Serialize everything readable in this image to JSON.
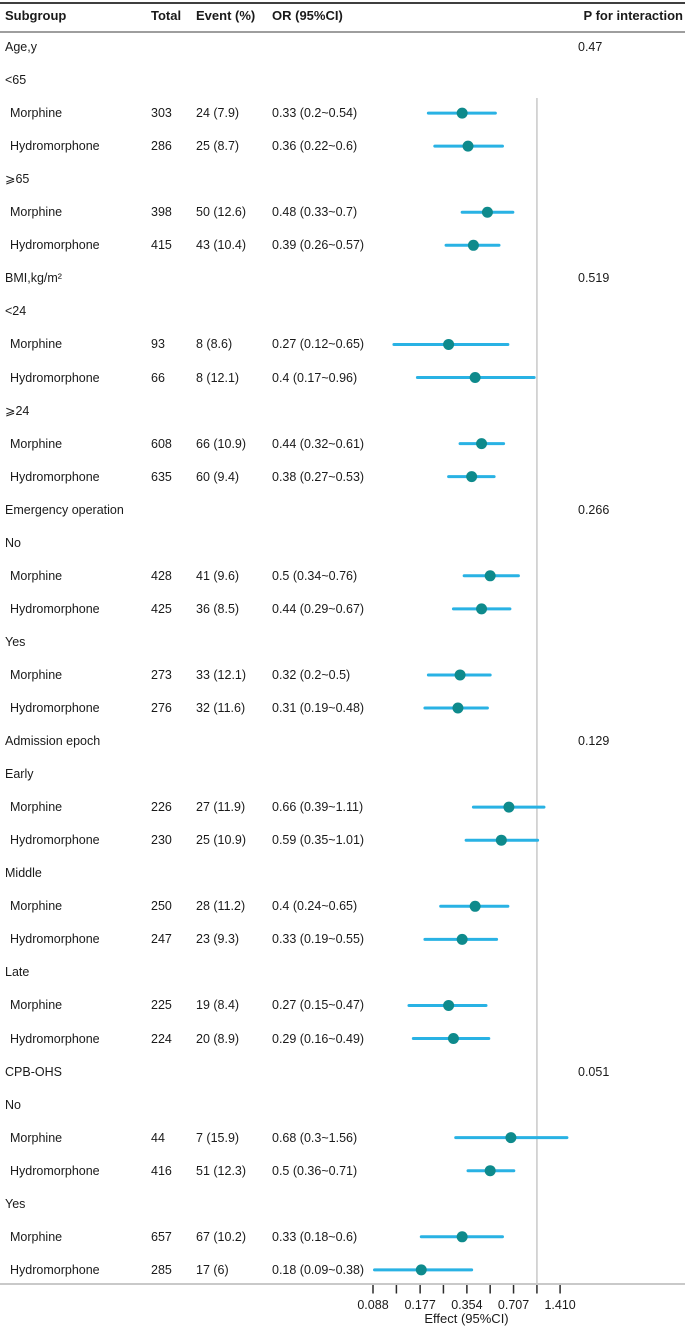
{
  "header": {
    "subgroup": "Subgroup",
    "total": "Total",
    "event": "Event (%)",
    "or": "OR (95%CI)",
    "p_interaction": "P for interaction"
  },
  "axis": {
    "label": "Effect (95%CI)",
    "scale": "log2",
    "ref_line": 1.0,
    "range": [
      0.088,
      1.41
    ],
    "ticks": [
      {
        "value": 0.088,
        "label": "0.088"
      },
      {
        "value": 0.1245
      },
      {
        "value": 0.177,
        "label": "0.177"
      },
      {
        "value": 0.25
      },
      {
        "value": 0.354,
        "label": "0.354"
      },
      {
        "value": 0.5
      },
      {
        "value": 0.707,
        "label": "0.707"
      },
      {
        "value": 1.0
      },
      {
        "value": 1.41,
        "label": "1.410"
      }
    ]
  },
  "colors": {
    "ci_line": "#29b2e4",
    "marker": "#0e8a8c",
    "ref_line": "#c9c9c9",
    "axis": "#2b2b2b",
    "text": "#1a1a1a"
  },
  "chart_data": {
    "type": "forest",
    "groups": [
      {
        "label": "Age,y",
        "p_interaction": "0.47",
        "subgroups": [
          {
            "label": "<65",
            "arms": [
              {
                "label": "Morphine",
                "total": "303",
                "event": "24 (7.9)",
                "or_text": "0.33 (0.2~0.54)",
                "or": 0.33,
                "lo": 0.2,
                "hi": 0.54
              },
              {
                "label": "Hydromorphone",
                "total": "286",
                "event": "25 (8.7)",
                "or_text": "0.36 (0.22~0.6)",
                "or": 0.36,
                "lo": 0.22,
                "hi": 0.6
              }
            ]
          },
          {
            "label": "⩾65",
            "arms": [
              {
                "label": "Morphine",
                "total": "398",
                "event": "50 (12.6)",
                "or_text": "0.48 (0.33~0.7)",
                "or": 0.48,
                "lo": 0.33,
                "hi": 0.7
              },
              {
                "label": "Hydromorphone",
                "total": "415",
                "event": "43 (10.4)",
                "or_text": "0.39 (0.26~0.57)",
                "or": 0.39,
                "lo": 0.26,
                "hi": 0.57
              }
            ]
          }
        ]
      },
      {
        "label": "BMI,kg/m²",
        "p_interaction": "0.519",
        "subgroups": [
          {
            "label": "<24",
            "arms": [
              {
                "label": "Morphine",
                "total": "93",
                "event": "8 (8.6)",
                "or_text": "0.27 (0.12~0.65)",
                "or": 0.27,
                "lo": 0.12,
                "hi": 0.65
              },
              {
                "label": "Hydromorphone",
                "total": "66",
                "event": "8 (12.1)",
                "or_text": "0.4 (0.17~0.96)",
                "or": 0.4,
                "lo": 0.17,
                "hi": 0.96
              }
            ]
          },
          {
            "label": "⩾24",
            "arms": [
              {
                "label": "Morphine",
                "total": "608",
                "event": "66 (10.9)",
                "or_text": "0.44 (0.32~0.61)",
                "or": 0.44,
                "lo": 0.32,
                "hi": 0.61
              },
              {
                "label": "Hydromorphone",
                "total": "635",
                "event": "60 (9.4)",
                "or_text": "0.38 (0.27~0.53)",
                "or": 0.38,
                "lo": 0.27,
                "hi": 0.53
              }
            ]
          }
        ]
      },
      {
        "label": "Emergency operation",
        "p_interaction": "0.266",
        "subgroups": [
          {
            "label": "No",
            "arms": [
              {
                "label": "Morphine",
                "total": "428",
                "event": "41 (9.6)",
                "or_text": "0.5 (0.34~0.76)",
                "or": 0.5,
                "lo": 0.34,
                "hi": 0.76
              },
              {
                "label": "Hydromorphone",
                "total": "425",
                "event": "36 (8.5)",
                "or_text": "0.44 (0.29~0.67)",
                "or": 0.44,
                "lo": 0.29,
                "hi": 0.67
              }
            ]
          },
          {
            "label": "Yes",
            "arms": [
              {
                "label": "Morphine",
                "total": "273",
                "event": "33 (12.1)",
                "or_text": "0.32 (0.2~0.5)",
                "or": 0.32,
                "lo": 0.2,
                "hi": 0.5
              },
              {
                "label": "Hydromorphone",
                "total": "276",
                "event": "32 (11.6)",
                "or_text": "0.31 (0.19~0.48)",
                "or": 0.31,
                "lo": 0.19,
                "hi": 0.48
              }
            ]
          }
        ]
      },
      {
        "label": "Admission epoch",
        "p_interaction": "0.129",
        "subgroups": [
          {
            "label": "Early",
            "arms": [
              {
                "label": "Morphine",
                "total": "226",
                "event": "27 (11.9)",
                "or_text": "0.66 (0.39~1.11)",
                "or": 0.66,
                "lo": 0.39,
                "hi": 1.11
              },
              {
                "label": "Hydromorphone",
                "total": "230",
                "event": "25 (10.9)",
                "or_text": "0.59 (0.35~1.01)",
                "or": 0.59,
                "lo": 0.35,
                "hi": 1.01
              }
            ]
          },
          {
            "label": "Middle",
            "arms": [
              {
                "label": "Morphine",
                "total": "250",
                "event": "28 (11.2)",
                "or_text": "0.4 (0.24~0.65)",
                "or": 0.4,
                "lo": 0.24,
                "hi": 0.65
              },
              {
                "label": "Hydromorphone",
                "total": "247",
                "event": "23 (9.3)",
                "or_text": "0.33 (0.19~0.55)",
                "or": 0.33,
                "lo": 0.19,
                "hi": 0.55
              }
            ]
          },
          {
            "label": "Late",
            "arms": [
              {
                "label": "Morphine",
                "total": "225",
                "event": "19 (8.4)",
                "or_text": "0.27 (0.15~0.47)",
                "or": 0.27,
                "lo": 0.15,
                "hi": 0.47
              },
              {
                "label": "Hydromorphone",
                "total": "224",
                "event": "20 (8.9)",
                "or_text": "0.29 (0.16~0.49)",
                "or": 0.29,
                "lo": 0.16,
                "hi": 0.49
              }
            ]
          }
        ]
      },
      {
        "label": "CPB-OHS",
        "p_interaction": "0.051",
        "subgroups": [
          {
            "label": "No",
            "arms": [
              {
                "label": "Morphine",
                "total": "44",
                "event": "7 (15.9)",
                "or_text": "0.68 (0.3~1.56)",
                "or": 0.68,
                "lo": 0.3,
                "hi": 1.56
              },
              {
                "label": "Hydromorphone",
                "total": "416",
                "event": "51 (12.3)",
                "or_text": "0.5 (0.36~0.71)",
                "or": 0.5,
                "lo": 0.36,
                "hi": 0.71
              }
            ]
          },
          {
            "label": "Yes",
            "arms": [
              {
                "label": "Morphine",
                "total": "657",
                "event": "67 (10.2)",
                "or_text": "0.33 (0.18~0.6)",
                "or": 0.33,
                "lo": 0.18,
                "hi": 0.6
              },
              {
                "label": "Hydromorphone",
                "total": "285",
                "event": "17 (6)",
                "or_text": "0.18 (0.09~0.38)",
                "or": 0.18,
                "lo": 0.09,
                "hi": 0.38
              }
            ]
          }
        ]
      }
    ]
  }
}
